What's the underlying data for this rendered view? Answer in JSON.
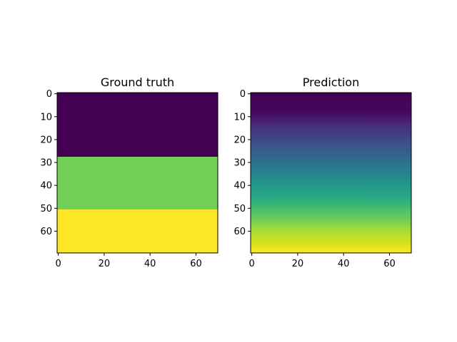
{
  "chart_data": [
    {
      "type": "heatmap",
      "title": "Ground truth",
      "colormap": "viridis",
      "x_ticks": [
        0,
        20,
        40,
        60
      ],
      "y_ticks": [
        0,
        10,
        20,
        30,
        40,
        50,
        60
      ],
      "xlim": [
        -0.5,
        69.5
      ],
      "ylim": [
        69.5,
        -0.5
      ],
      "bands": [
        {
          "rows": [
            0,
            27
          ],
          "color": "#440154"
        },
        {
          "rows": [
            28,
            50
          ],
          "color": "#71cf57"
        },
        {
          "rows": [
            51,
            69
          ],
          "color": "#fde725"
        }
      ]
    },
    {
      "type": "heatmap",
      "title": "Prediction",
      "colormap": "viridis",
      "x_ticks": [
        0,
        20,
        40,
        60
      ],
      "y_ticks": [
        0,
        10,
        20,
        30,
        40,
        50,
        60
      ],
      "xlim": [
        -0.5,
        69.5
      ],
      "ylim": [
        69.5,
        -0.5
      ],
      "gradient": [
        {
          "row": 0,
          "color": "#440154"
        },
        {
          "row": 8,
          "color": "#46085c"
        },
        {
          "row": 14,
          "color": "#472e7c"
        },
        {
          "row": 22,
          "color": "#3b528b"
        },
        {
          "row": 30,
          "color": "#2c728e"
        },
        {
          "row": 38,
          "color": "#21908d"
        },
        {
          "row": 46,
          "color": "#27ad81"
        },
        {
          "row": 53,
          "color": "#5cc863"
        },
        {
          "row": 60,
          "color": "#aadc32"
        },
        {
          "row": 66,
          "color": "#dde318"
        },
        {
          "row": 69,
          "color": "#fde725"
        }
      ]
    }
  ]
}
